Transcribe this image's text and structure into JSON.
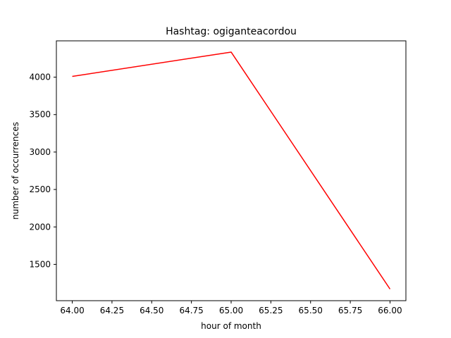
{
  "chart_data": {
    "type": "line",
    "title": "Hashtag: ogiganteacordou",
    "xlabel": "hour of month",
    "ylabel": "number of occurrences",
    "xlim": [
      63.9,
      66.1
    ],
    "ylim": [
      1015,
      4485
    ],
    "x_ticks": [
      64.0,
      64.25,
      64.5,
      64.75,
      65.0,
      65.25,
      65.5,
      65.75,
      66.0
    ],
    "x_tick_labels": [
      "64.00",
      "64.25",
      "64.50",
      "64.75",
      "65.00",
      "65.25",
      "65.50",
      "65.75",
      "66.00"
    ],
    "y_ticks": [
      1500,
      2000,
      2500,
      3000,
      3500,
      4000
    ],
    "y_tick_labels": [
      "1500",
      "2000",
      "2500",
      "3000",
      "3500",
      "4000"
    ],
    "grid": false,
    "series": [
      {
        "color": "#ff0000",
        "x": [
          64,
          65,
          66
        ],
        "y": [
          4010,
          4335,
          1170
        ]
      }
    ]
  }
}
